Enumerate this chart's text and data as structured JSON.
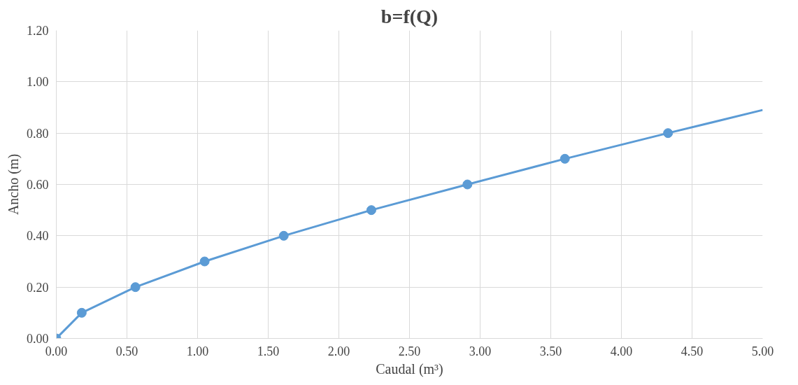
{
  "chart_data": {
    "type": "line",
    "title": "b=f(Q)",
    "xlabel": "Caudal (m³)",
    "ylabel": "Ancho (m)",
    "series": [
      {
        "color": "#5b9bd5",
        "marker": "none",
        "x": [
          0.0,
          0.18,
          0.56,
          1.05,
          1.61,
          2.23,
          2.91,
          3.6,
          4.33,
          5.0
        ],
        "values": [
          0.0,
          0.1,
          0.2,
          0.3,
          0.4,
          0.5,
          0.6,
          0.7,
          0.8,
          0.89
        ]
      },
      {
        "type": "scatter",
        "color": "#5b9bd5",
        "marker": "circle",
        "x": [
          0.0,
          0.18,
          0.56,
          1.05,
          1.61,
          2.23,
          2.91,
          3.6,
          4.33
        ],
        "values": [
          0.0,
          0.1,
          0.2,
          0.3,
          0.4,
          0.5,
          0.6,
          0.7,
          0.8
        ]
      }
    ],
    "xlim": [
      0,
      5
    ],
    "ylim": [
      0,
      1.2
    ],
    "xticks": [
      {
        "value": 0,
        "label": "0.00"
      },
      {
        "value": 0.5,
        "label": "0.50"
      },
      {
        "value": 1,
        "label": "1.00"
      },
      {
        "value": 1.5,
        "label": "1.50"
      },
      {
        "value": 2,
        "label": "2.00"
      },
      {
        "value": 2.5,
        "label": "2.50"
      },
      {
        "value": 3,
        "label": "3.00"
      },
      {
        "value": 3.5,
        "label": "3.50"
      },
      {
        "value": 4,
        "label": "4.00"
      },
      {
        "value": 4.5,
        "label": "4.50"
      },
      {
        "value": 5,
        "label": "5.00"
      }
    ],
    "yticks": [
      {
        "value": 0,
        "label": "0.00"
      },
      {
        "value": 0.2,
        "label": "0.20"
      },
      {
        "value": 0.4,
        "label": "0.40"
      },
      {
        "value": 0.6,
        "label": "0.60"
      },
      {
        "value": 0.8,
        "label": "0.80"
      },
      {
        "value": 1.0,
        "label": "1.00"
      },
      {
        "value": 1.2,
        "label": "1.20"
      }
    ],
    "grid": true
  }
}
